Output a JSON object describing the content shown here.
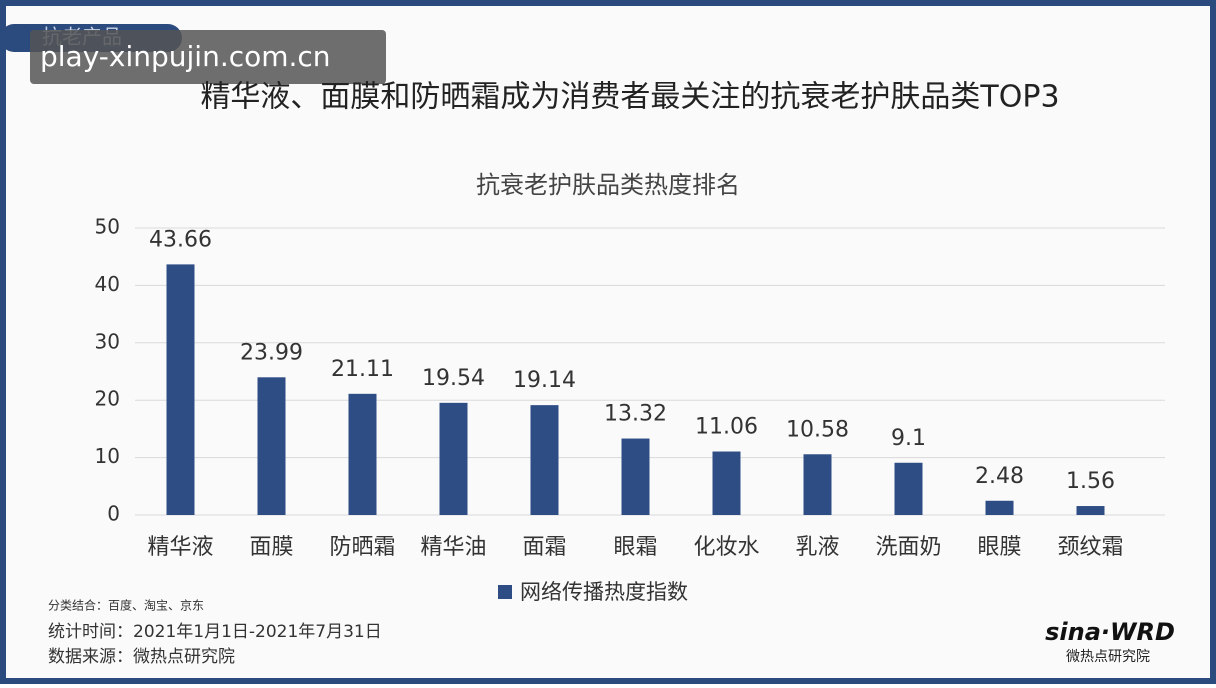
{
  "tag": "抗老产品",
  "watermark": "play-xinpujin.com.cn",
  "headline": "精华液、面膜和防晒霜成为消费者最关注的抗衰老护肤品类TOP3",
  "notes": [
    "分类结合：百度、淘宝、京东",
    "统计时间：2021年1月1日-2021年7月31日",
    "数据来源：微热点研究院"
  ],
  "logo": {
    "brand": "sina·WRD",
    "subtitle": "微热点研究院"
  },
  "chart_data": {
    "type": "bar",
    "title": "抗衰老护肤品类热度排名",
    "categories": [
      "精华液",
      "面膜",
      "防晒霜",
      "精华油",
      "面霜",
      "眼霜",
      "化妆水",
      "乳液",
      "洗面奶",
      "眼膜",
      "颈纹霜"
    ],
    "series": [
      {
        "name": "网络传播热度指数",
        "color": "#2e4d85",
        "values": [
          43.66,
          23.99,
          21.11,
          19.54,
          19.14,
          13.32,
          11.06,
          10.58,
          9.1,
          2.48,
          1.56
        ]
      }
    ],
    "ylim": [
      0,
      50
    ],
    "yticks": [
      0,
      10,
      20,
      30,
      40,
      50
    ],
    "grid": true,
    "legend": "bottom"
  }
}
